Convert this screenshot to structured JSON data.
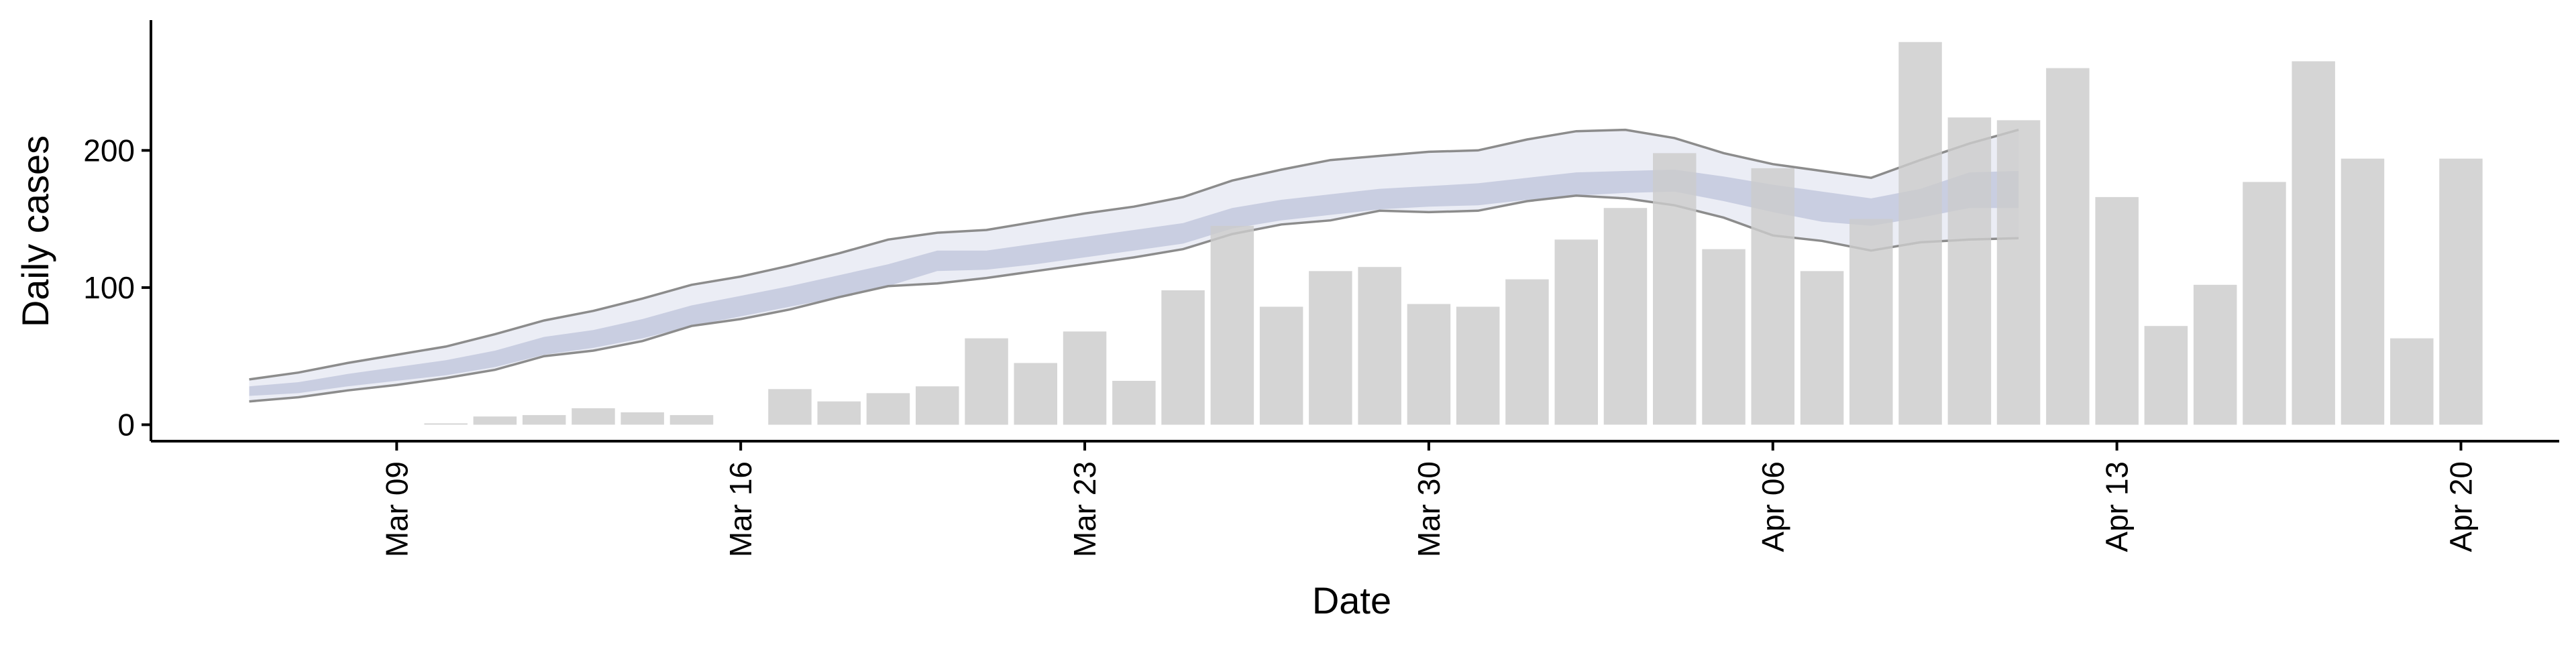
{
  "chart_data": {
    "type": "bar",
    "title": "",
    "xlabel": "Date",
    "ylabel": "Daily cases",
    "ylim": [
      -12,
      295
    ],
    "yticks": [
      0,
      100,
      200
    ],
    "xlim": [
      "2020-03-04",
      "2020-04-22"
    ],
    "xticks": [
      {
        "date": "2020-03-09",
        "label": "Mar 09"
      },
      {
        "date": "2020-03-16",
        "label": "Mar 16"
      },
      {
        "date": "2020-03-23",
        "label": "Mar 23"
      },
      {
        "date": "2020-03-30",
        "label": "Mar 30"
      },
      {
        "date": "2020-04-06",
        "label": "Apr 06"
      },
      {
        "date": "2020-04-13",
        "label": "Apr 13"
      },
      {
        "date": "2020-04-20",
        "label": "Apr 20"
      }
    ],
    "grid": false,
    "legend": "none",
    "bars": {
      "name": "",
      "color": "#cccccc",
      "x": [
        "2020-03-10",
        "2020-03-11",
        "2020-03-12",
        "2020-03-13",
        "2020-03-14",
        "2020-03-15",
        "2020-03-17",
        "2020-03-18",
        "2020-03-19",
        "2020-03-20",
        "2020-03-21",
        "2020-03-22",
        "2020-03-23",
        "2020-03-24",
        "2020-03-25",
        "2020-03-26",
        "2020-03-27",
        "2020-03-28",
        "2020-03-29",
        "2020-03-30",
        "2020-03-31",
        "2020-04-01",
        "2020-04-02",
        "2020-04-03",
        "2020-04-04",
        "2020-04-05",
        "2020-04-06",
        "2020-04-07",
        "2020-04-08",
        "2020-04-09",
        "2020-04-10",
        "2020-04-11",
        "2020-04-12",
        "2020-04-13",
        "2020-04-14",
        "2020-04-15",
        "2020-04-16",
        "2020-04-17",
        "2020-04-18",
        "2020-04-19",
        "2020-04-20"
      ],
      "values": [
        1,
        6,
        7,
        12,
        9,
        7,
        26,
        17,
        23,
        28,
        63,
        45,
        68,
        32,
        98,
        145,
        86,
        112,
        115,
        88,
        86,
        106,
        135,
        158,
        198,
        128,
        187,
        112,
        150,
        279,
        224,
        222,
        260,
        166,
        72,
        102,
        177,
        265,
        194,
        63,
        194
      ]
    },
    "estimate": {
      "x": [
        "2020-03-06",
        "2020-03-07",
        "2020-03-08",
        "2020-03-09",
        "2020-03-10",
        "2020-03-11",
        "2020-03-12",
        "2020-03-13",
        "2020-03-14",
        "2020-03-15",
        "2020-03-16",
        "2020-03-17",
        "2020-03-18",
        "2020-03-19",
        "2020-03-20",
        "2020-03-21",
        "2020-03-22",
        "2020-03-23",
        "2020-03-24",
        "2020-03-25",
        "2020-03-26",
        "2020-03-27",
        "2020-03-28",
        "2020-03-29",
        "2020-03-30",
        "2020-03-31",
        "2020-04-01",
        "2020-04-02",
        "2020-04-03",
        "2020-04-04",
        "2020-04-05",
        "2020-04-06",
        "2020-04-07",
        "2020-04-08",
        "2020-04-09",
        "2020-04-10",
        "2020-04-11"
      ],
      "outer_upper": [
        33,
        38,
        45,
        51,
        57,
        66,
        76,
        83,
        92,
        102,
        108,
        116,
        125,
        135,
        140,
        142,
        148,
        154,
        159,
        166,
        178,
        186,
        193,
        196,
        199,
        200,
        208,
        214,
        215,
        209,
        198,
        190,
        185,
        180,
        193,
        205,
        215
      ],
      "outer_lower": [
        17,
        20,
        25,
        29,
        34,
        40,
        50,
        54,
        61,
        72,
        77,
        84,
        93,
        101,
        103,
        107,
        112,
        117,
        122,
        128,
        139,
        146,
        149,
        156,
        155,
        156,
        163,
        167,
        165,
        160,
        151,
        138,
        134,
        127,
        133,
        135,
        136
      ],
      "mid_upper": [
        28,
        31,
        37,
        42,
        47,
        54,
        64,
        69,
        77,
        87,
        94,
        101,
        109,
        117,
        127,
        127,
        132,
        137,
        142,
        147,
        158,
        164,
        168,
        172,
        174,
        176,
        180,
        184,
        185,
        186,
        181,
        175,
        170,
        165,
        172,
        184,
        185
      ],
      "mid_lower": [
        21,
        23,
        28,
        32,
        36,
        42,
        51,
        56,
        63,
        72,
        79,
        86,
        93,
        101,
        112,
        113,
        117,
        122,
        127,
        132,
        143,
        149,
        153,
        157,
        159,
        160,
        164,
        167,
        169,
        170,
        163,
        155,
        148,
        145,
        151,
        158,
        158
      ],
      "outer_band_color": "#e6e8f2",
      "inner_band_color": "#c5cadf",
      "bound_line_color": "#8c8c8c"
    }
  }
}
